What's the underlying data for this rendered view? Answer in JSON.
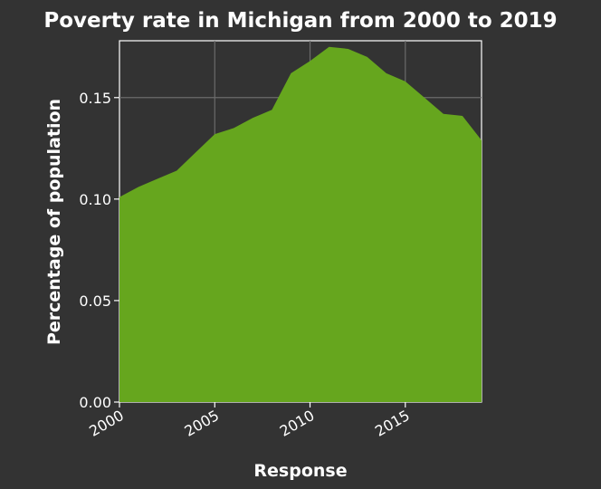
{
  "chart_data": {
    "type": "area",
    "title": "Poverty rate in Michigan from 2000 to 2019",
    "xlabel": "Response",
    "ylabel": "Percentage of population",
    "x": [
      2000,
      2001,
      2002,
      2003,
      2004,
      2005,
      2006,
      2007,
      2008,
      2009,
      2010,
      2011,
      2012,
      2013,
      2014,
      2015,
      2016,
      2017,
      2018,
      2019
    ],
    "series": [
      {
        "values": [
          0.101,
          0.106,
          0.11,
          0.114,
          0.123,
          0.132,
          0.135,
          0.14,
          0.144,
          0.162,
          0.168,
          0.175,
          0.174,
          0.17,
          0.162,
          0.158,
          0.15,
          0.142,
          0.141,
          0.129
        ]
      }
    ],
    "xlim": [
      2000,
      2019
    ],
    "ylim": [
      0,
      0.178
    ],
    "xticks": [
      2000,
      2005,
      2010,
      2015
    ],
    "yticks": [
      0.0,
      0.05,
      0.1,
      0.15
    ],
    "xtick_labels": [
      "2000",
      "2005",
      "2010",
      "2015"
    ],
    "ytick_labels": [
      "0.00",
      "0.05",
      "0.10",
      "0.15"
    ],
    "grid": true,
    "colors": {
      "background": "#333333",
      "fill": "#66a61e",
      "grid": "#6b6b6b",
      "text": "#ffffff"
    }
  }
}
